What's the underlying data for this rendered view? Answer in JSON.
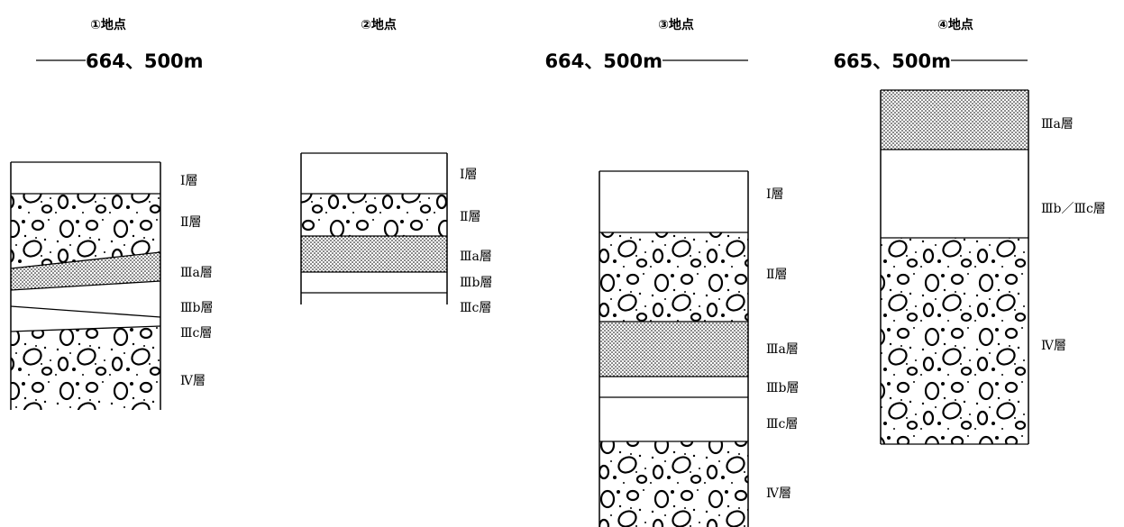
{
  "sites": [
    {
      "title": "①地点",
      "elevation": "664、500m",
      "layers": [
        "Ⅰ層",
        "Ⅱ層",
        "Ⅲa層",
        "Ⅲb層",
        "Ⅲc層",
        "Ⅳ層"
      ]
    },
    {
      "title": "②地点",
      "layers": [
        "Ⅰ層",
        "Ⅱ層",
        "Ⅲa層",
        "Ⅲb層",
        "Ⅲc層"
      ]
    },
    {
      "title": "③地点",
      "elevation": "664、500m",
      "layers": [
        "Ⅰ層",
        "Ⅱ層",
        "Ⅲa層",
        "Ⅲb層",
        "Ⅲc層",
        "Ⅳ層"
      ]
    },
    {
      "title": "④地点",
      "elevation": "665、500m",
      "layers": [
        "Ⅲa層",
        "Ⅲb／Ⅲc層",
        "Ⅳ層"
      ]
    }
  ]
}
